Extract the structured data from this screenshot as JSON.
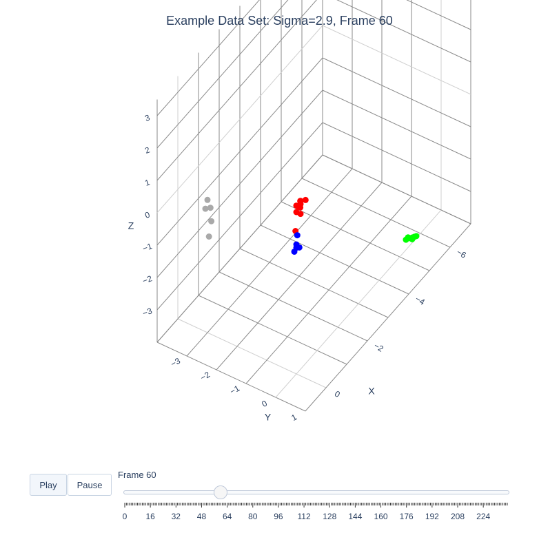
{
  "title": "Example Data Set: Sigma=2.9, Frame 60",
  "controls": {
    "play_label": "Play",
    "pause_label": "Pause",
    "frame_label": "Frame 60"
  },
  "slider": {
    "min": 0,
    "max": 239,
    "value": 60,
    "step": 1,
    "tick_labels": [
      "0",
      "16",
      "32",
      "48",
      "64",
      "80",
      "96",
      "112",
      "128",
      "144",
      "160",
      "176",
      "192",
      "208",
      "224"
    ]
  },
  "chart_data": {
    "type": "scatter3d",
    "title": "Example Data Set: Sigma=2.9, Frame 60",
    "axes": {
      "x": {
        "label": "X",
        "range": [
          -7,
          1
        ],
        "ticks": [
          -6,
          -4,
          -2,
          0
        ]
      },
      "y": {
        "label": "Y",
        "range": [
          -4,
          1
        ],
        "ticks": [
          -3,
          -2,
          -1,
          0,
          1
        ]
      },
      "z": {
        "label": "Z",
        "range": [
          -4,
          3.5
        ],
        "ticks": [
          -3,
          -2,
          -1,
          0,
          1,
          2,
          3
        ]
      }
    },
    "grid": true,
    "series": [
      {
        "color": "#ff0000",
        "points": [
          [
            0.1,
            0.2,
            1.5
          ],
          [
            0.1,
            0.2,
            1.3
          ],
          [
            0.0,
            0.0,
            1.2
          ],
          [
            -0.2,
            0.0,
            1.2
          ],
          [
            -0.3,
            0.1,
            1.2
          ],
          [
            -0.2,
            0.0,
            1.1
          ],
          [
            -0.1,
            0.0,
            1.1
          ],
          [
            0.0,
            0.0,
            1.0
          ],
          [
            -0.2,
            0.0,
            0.8
          ],
          [
            -0.1,
            -0.1,
            0.3
          ]
        ]
      },
      {
        "color": "#00ff00",
        "points": [
          [
            -1.0,
            3.0,
            0.7
          ],
          [
            -1.1,
            3.0,
            0.7
          ],
          [
            -1.2,
            3.0,
            0.6
          ],
          [
            -1.3,
            3.0,
            0.55
          ],
          [
            -1.3,
            3.0,
            0.5
          ],
          [
            -1.4,
            3.0,
            0.5
          ],
          [
            -1.5,
            3.0,
            0.45
          ]
        ]
      },
      {
        "color": "#0000ff",
        "points": [
          [
            0.1,
            0.1,
            0.4
          ],
          [
            0.0,
            0.0,
            0.0
          ],
          [
            0.0,
            0.0,
            -0.1
          ],
          [
            0.1,
            0.0,
            -0.15
          ],
          [
            0.0,
            0.1,
            -0.05
          ]
        ]
      },
      {
        "color": "#a9a9a9",
        "points": [
          [
            0.0,
            -3.0,
            0.1
          ],
          [
            0.0,
            -2.9,
            -0.1
          ],
          [
            0.1,
            -3.0,
            -0.1
          ],
          [
            0.1,
            -2.8,
            -0.4
          ],
          [
            0.5,
            -2.6,
            -0.5
          ]
        ]
      }
    ]
  }
}
